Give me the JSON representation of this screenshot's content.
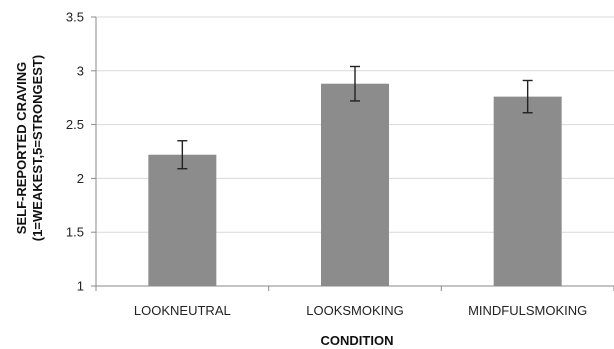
{
  "chart_data": {
    "type": "bar",
    "categories": [
      "LOOKNEUTRAL",
      "LOOKSMOKING",
      "MINDFULSMOKING"
    ],
    "values": [
      2.22,
      2.88,
      2.76
    ],
    "error": [
      0.13,
      0.16,
      0.15
    ],
    "xlabel": "CONDITION",
    "ylabel_line1": "SELF-REPORTED CRAVING",
    "ylabel_line2": "(1=WEAKEST,5=STRONGEST)",
    "ylim": [
      1,
      3.5
    ],
    "yticks": [
      "1",
      "1.5",
      "2",
      "2.5",
      "3",
      "3.5"
    ],
    "ytick_values": [
      1,
      1.5,
      2,
      2.5,
      3,
      3.5
    ],
    "grid": "horizontal",
    "bar_color": "#8c8c8c",
    "grid_color": "#d9d9d9",
    "axis_color": "#8a8a8a",
    "error_color": "#222222"
  }
}
